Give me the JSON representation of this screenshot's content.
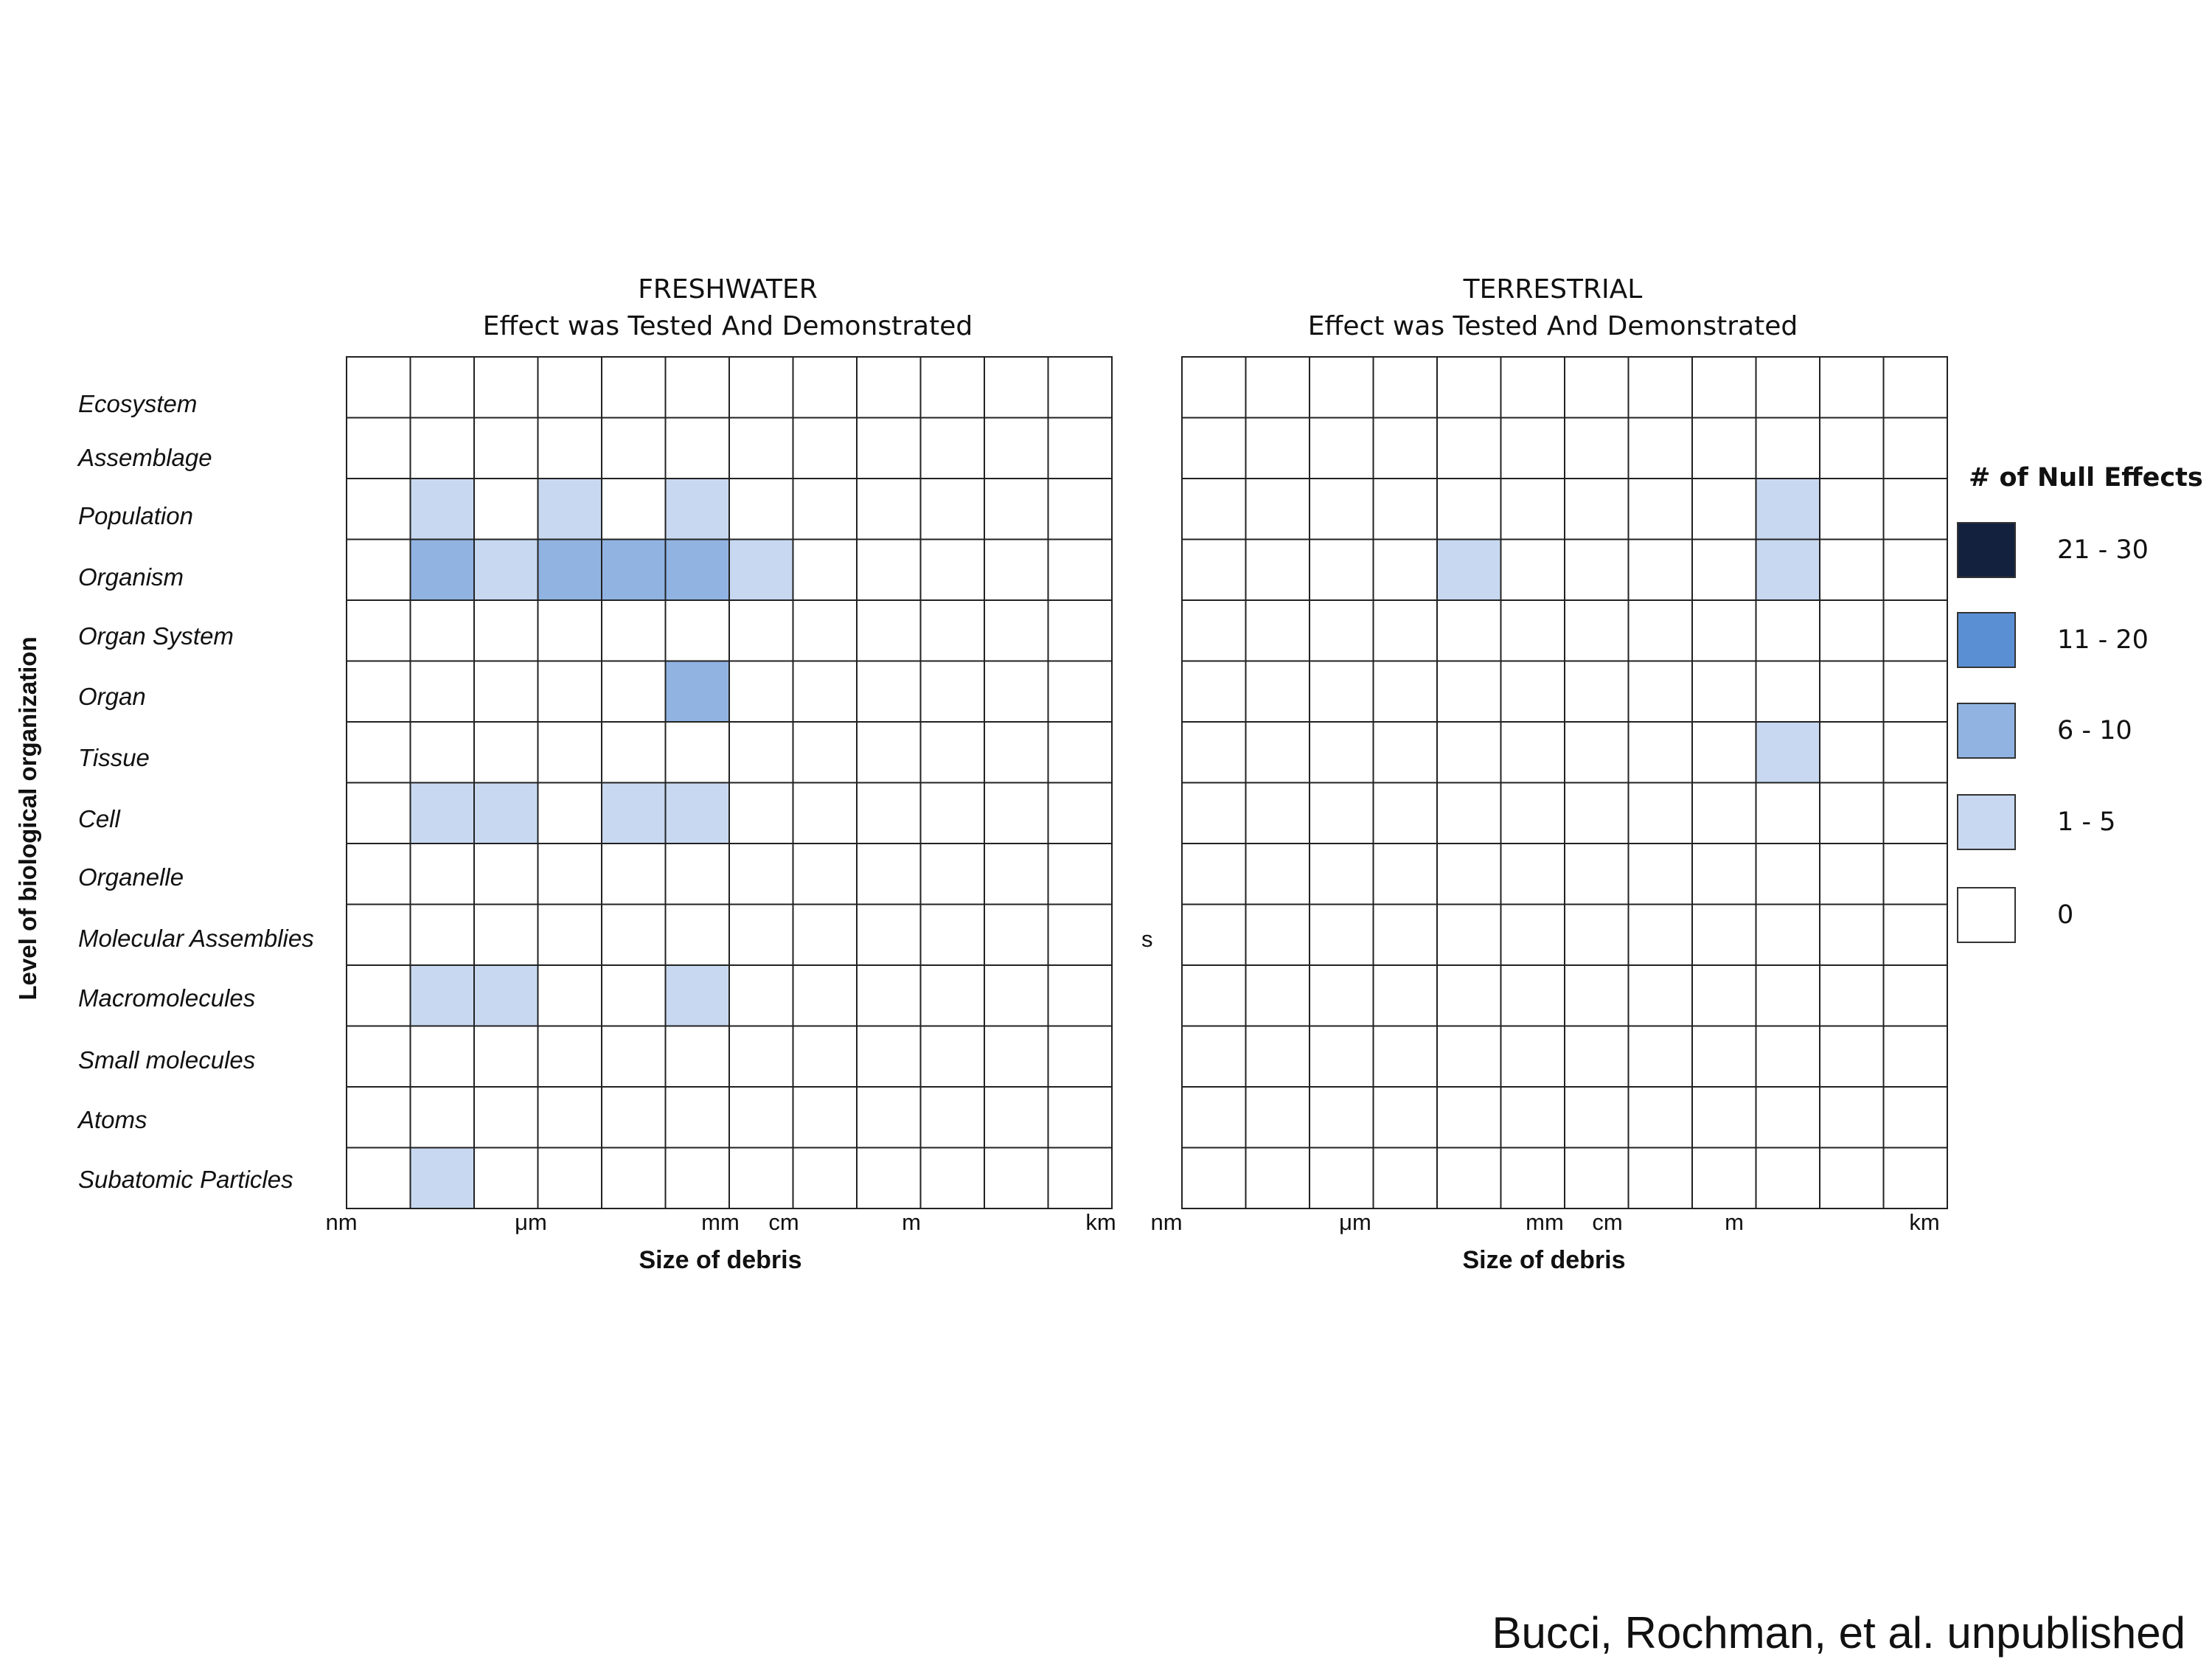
{
  "chart_data": [
    {
      "type": "heatmap",
      "title": "FRESHWATER",
      "subtitle": "Effect was Tested And Demonstrated",
      "xlabel": "Size of debris",
      "ylabel": "Level of biological organization",
      "x_tick_labels": [
        "nm",
        "μm",
        "mm",
        "cm",
        "m",
        "km"
      ],
      "rows": [
        "Ecosystem",
        "Assemblage",
        "Population",
        "Organism",
        "Organ System",
        "Organ",
        "Tissue",
        "Cell",
        "Organelle",
        "Molecular Assemblies",
        "Macromolecules",
        "Small molecules",
        "Atoms",
        "Subatomic Particles"
      ],
      "n_columns": 12,
      "values": [
        [
          0,
          0,
          0,
          0,
          0,
          0,
          0,
          0,
          0,
          0,
          0,
          0
        ],
        [
          0,
          0,
          0,
          0,
          0,
          0,
          0,
          0,
          0,
          0,
          0,
          0
        ],
        [
          0,
          1,
          0,
          1,
          0,
          1,
          0,
          0,
          0,
          0,
          0,
          0
        ],
        [
          0,
          2,
          1,
          2,
          2,
          2,
          1,
          0,
          0,
          0,
          0,
          0
        ],
        [
          0,
          0,
          0,
          0,
          0,
          0,
          0,
          0,
          0,
          0,
          0,
          0
        ],
        [
          0,
          0,
          0,
          0,
          0,
          2,
          0,
          0,
          0,
          0,
          0,
          0
        ],
        [
          0,
          0,
          0,
          0,
          0,
          0,
          0,
          0,
          0,
          0,
          0,
          0
        ],
        [
          0,
          1,
          1,
          0,
          1,
          1,
          0,
          0,
          0,
          0,
          0,
          0
        ],
        [
          0,
          0,
          0,
          0,
          0,
          0,
          0,
          0,
          0,
          0,
          0,
          0
        ],
        [
          0,
          0,
          0,
          0,
          0,
          0,
          0,
          0,
          0,
          0,
          0,
          0
        ],
        [
          0,
          1,
          1,
          0,
          0,
          1,
          0,
          0,
          0,
          0,
          0,
          0
        ],
        [
          0,
          0,
          0,
          0,
          0,
          0,
          0,
          0,
          0,
          0,
          0,
          0
        ],
        [
          0,
          0,
          0,
          0,
          0,
          0,
          0,
          0,
          0,
          0,
          0,
          0
        ],
        [
          0,
          1,
          0,
          0,
          0,
          0,
          0,
          0,
          0,
          0,
          0,
          0
        ]
      ]
    },
    {
      "type": "heatmap",
      "title": "TERRESTRIAL",
      "subtitle": "Effect was Tested And Demonstrated",
      "xlabel": "Size of debris",
      "ylabel": "",
      "x_tick_labels": [
        "nm",
        "μm",
        "mm",
        "cm",
        "m",
        "km"
      ],
      "rows": [
        "Ecosystem",
        "Assemblage",
        "Population",
        "Organism",
        "Organ System",
        "Organ",
        "Tissue",
        "Cell",
        "Organelle",
        "Molecular Assemblies",
        "Macromolecules",
        "Small molecules",
        "Atoms",
        "Subatomic Particles"
      ],
      "n_columns": 12,
      "values": [
        [
          0,
          0,
          0,
          0,
          0,
          0,
          0,
          0,
          0,
          0,
          0,
          0
        ],
        [
          0,
          0,
          0,
          0,
          0,
          0,
          0,
          0,
          0,
          0,
          0,
          0
        ],
        [
          0,
          0,
          0,
          0,
          0,
          0,
          0,
          0,
          0,
          1,
          0,
          0
        ],
        [
          0,
          0,
          0,
          0,
          1,
          0,
          0,
          0,
          0,
          1,
          0,
          0
        ],
        [
          0,
          0,
          0,
          0,
          0,
          0,
          0,
          0,
          0,
          0,
          0,
          0
        ],
        [
          0,
          0,
          0,
          0,
          0,
          0,
          0,
          0,
          0,
          0,
          0,
          0
        ],
        [
          0,
          0,
          0,
          0,
          0,
          0,
          0,
          0,
          0,
          1,
          0,
          0
        ],
        [
          0,
          0,
          0,
          0,
          0,
          0,
          0,
          0,
          0,
          0,
          0,
          0
        ],
        [
          0,
          0,
          0,
          0,
          0,
          0,
          0,
          0,
          0,
          0,
          0,
          0
        ],
        [
          0,
          0,
          0,
          0,
          0,
          0,
          0,
          0,
          0,
          0,
          0,
          0
        ],
        [
          0,
          0,
          0,
          0,
          0,
          0,
          0,
          0,
          0,
          0,
          0,
          0
        ],
        [
          0,
          0,
          0,
          0,
          0,
          0,
          0,
          0,
          0,
          0,
          0,
          0
        ],
        [
          0,
          0,
          0,
          0,
          0,
          0,
          0,
          0,
          0,
          0,
          0,
          0
        ],
        [
          0,
          0,
          0,
          0,
          0,
          0,
          0,
          0,
          0,
          0,
          0,
          0
        ]
      ]
    }
  ],
  "value_encoding_note": "",
  "legend": {
    "title": "# of Null Effects",
    "entries": [
      {
        "label": "21 - 30",
        "color": "#13213f"
      },
      {
        "label": "11 - 20",
        "color": "#5b8fd4"
      },
      {
        "label": "6 - 10",
        "color": "#90b3e2"
      },
      {
        "label": "1 - 5",
        "color": "#c7d8f0"
      },
      {
        "label": "0",
        "color": "#ffffff"
      }
    ]
  },
  "bin_colors": [
    "#ffffff",
    "#c7d8f0",
    "#90b3e2",
    "#5b8fd4",
    "#13213f"
  ],
  "stray_text": "s",
  "credit": "Bucci, Rochman, et al. unpublished"
}
